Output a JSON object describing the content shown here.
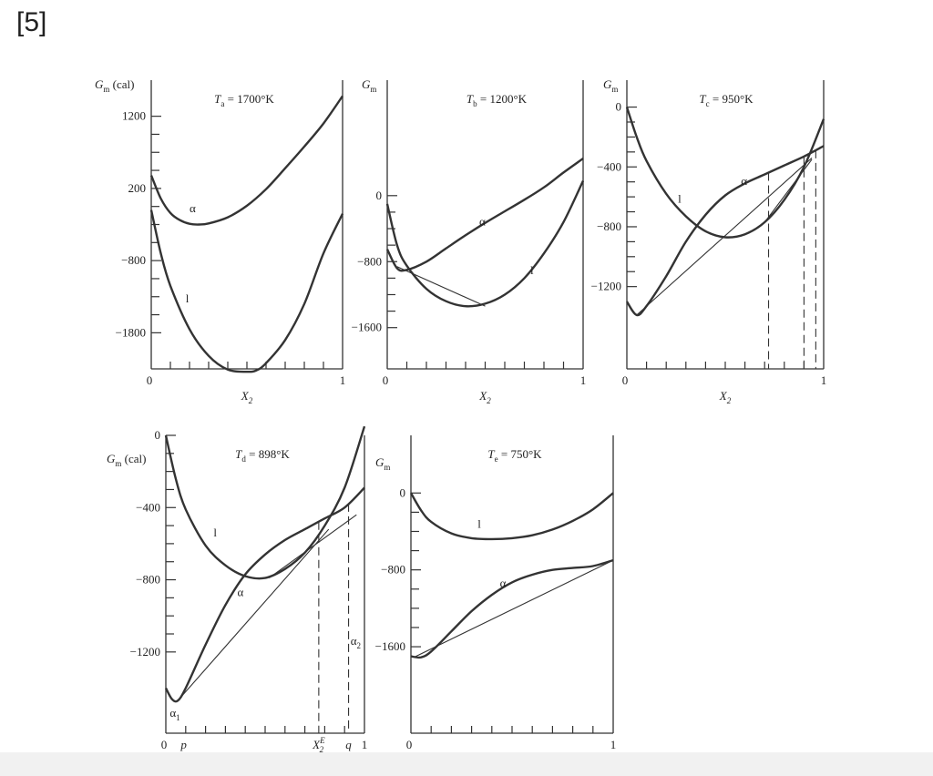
{
  "question_number": "[5]",
  "chart_data": [
    {
      "type": "line",
      "title": "Ta = 1700°K",
      "ylabel": "Gm (cal)",
      "xlabel": "X2",
      "xlim": [
        0,
        1
      ],
      "ylim": [
        -2300,
        1700
      ],
      "x_ticks": [
        "0",
        "1"
      ],
      "y_ticks": [
        {
          "value": 1200,
          "label": "1200"
        },
        {
          "value": 200,
          "label": "200"
        },
        {
          "value": -800,
          "label": "−800"
        },
        {
          "value": -1800,
          "label": "−1800"
        }
      ],
      "series": [
        {
          "name": "α",
          "x": [
            0,
            0.05,
            0.1,
            0.15,
            0.2,
            0.25,
            0.3,
            0.4,
            0.5,
            0.6,
            0.7,
            0.8,
            0.9,
            1.0
          ],
          "y": [
            380,
            60,
            -140,
            -240,
            -290,
            -300,
            -285,
            -200,
            -40,
            190,
            480,
            780,
            1100,
            1480
          ]
        },
        {
          "name": "l",
          "x": [
            0,
            0.05,
            0.1,
            0.2,
            0.3,
            0.4,
            0.5,
            0.55,
            0.6,
            0.7,
            0.8,
            0.9,
            1.0
          ],
          "y": [
            -100,
            -700,
            -1150,
            -1750,
            -2120,
            -2310,
            -2340,
            -2320,
            -2220,
            -1900,
            -1400,
            -700,
            -150
          ]
        }
      ],
      "annotations": [
        {
          "text": "α",
          "x": 0.2,
          "y": -130
        },
        {
          "text": "l",
          "x": 0.18,
          "y": -1380
        }
      ]
    },
    {
      "type": "line",
      "title": "Tb = 1200°K",
      "ylabel": "Gm",
      "xlabel": "X2",
      "xlim": [
        0,
        1
      ],
      "ylim": [
        -2100,
        1400
      ],
      "x_ticks": [
        "0",
        "1"
      ],
      "y_ticks": [
        {
          "value": 0,
          "label": "0"
        },
        {
          "value": -800,
          "label": "−800"
        },
        {
          "value": -1600,
          "label": "−1600"
        }
      ],
      "series": [
        {
          "name": "α",
          "x": [
            0,
            0.05,
            0.1,
            0.2,
            0.3,
            0.4,
            0.5,
            0.6,
            0.7,
            0.8,
            0.9,
            1.0
          ],
          "y": [
            -650,
            -880,
            -900,
            -800,
            -640,
            -480,
            -330,
            -190,
            -50,
            100,
            280,
            450
          ]
        },
        {
          "name": "l",
          "x": [
            0,
            0.05,
            0.1,
            0.2,
            0.3,
            0.4,
            0.5,
            0.6,
            0.7,
            0.8,
            0.9,
            1.0
          ],
          "y": [
            -100,
            -600,
            -850,
            -1130,
            -1280,
            -1340,
            -1310,
            -1200,
            -1000,
            -700,
            -320,
            180
          ]
        },
        {
          "name": "common tangent",
          "x": [
            0.05,
            0.5
          ],
          "y": [
            -860,
            -1340
          ]
        }
      ],
      "annotations": [
        {
          "text": "α",
          "x": 0.47,
          "y": -360
        },
        {
          "text": "l",
          "x": 0.73,
          "y": -950
        }
      ]
    },
    {
      "type": "line",
      "title": "Tc = 950°K",
      "ylabel": "Gm",
      "xlabel": "X2",
      "xlim": [
        0,
        1
      ],
      "ylim": [
        -1750,
        180
      ],
      "x_ticks": [
        "0",
        "1"
      ],
      "y_ticks": [
        {
          "value": 0,
          "label": "0"
        },
        {
          "value": -400,
          "label": "−400"
        },
        {
          "value": -800,
          "label": "−800"
        },
        {
          "value": -1200,
          "label": "−1200"
        }
      ],
      "series": [
        {
          "name": "l",
          "x": [
            0,
            0.05,
            0.1,
            0.2,
            0.3,
            0.4,
            0.5,
            0.6,
            0.7,
            0.8,
            0.9,
            1.0
          ],
          "y": [
            0,
            -200,
            -360,
            -580,
            -730,
            -830,
            -870,
            -850,
            -770,
            -620,
            -400,
            -80
          ]
        },
        {
          "name": "α",
          "x": [
            0,
            0.05,
            0.1,
            0.2,
            0.3,
            0.4,
            0.5,
            0.6,
            0.7,
            0.8,
            0.9,
            1.0
          ],
          "y": [
            -1300,
            -1390,
            -1330,
            -1130,
            -900,
            -720,
            -590,
            -510,
            -450,
            -390,
            -330,
            -260
          ]
        },
        {
          "name": "common tangent",
          "x": [
            0.05,
            0.94
          ],
          "y": [
            -1390,
            -340
          ]
        },
        {
          "name": "common tangent",
          "x": [
            0.7,
            0.94
          ],
          "y": [
            -770,
            -350
          ]
        }
      ],
      "dashed_x": [
        0.72,
        0.9,
        0.96
      ],
      "annotations": [
        {
          "text": "l",
          "x": 0.26,
          "y": -640
        },
        {
          "text": "α",
          "x": 0.58,
          "y": -520
        }
      ]
    },
    {
      "type": "line",
      "title": "Td = 898°K",
      "ylabel": "Gm (cal)",
      "xlabel": "X2",
      "xlim": [
        0,
        1
      ],
      "ylim": [
        -1650,
        0
      ],
      "x_ticks": [
        "0",
        "p",
        "X2E",
        "q",
        "1"
      ],
      "y_ticks": [
        {
          "value": 0,
          "label": "0"
        },
        {
          "value": -400,
          "label": "−400"
        },
        {
          "value": -800,
          "label": "−800"
        },
        {
          "value": -1200,
          "label": "−1200"
        }
      ],
      "series": [
        {
          "name": "l",
          "x": [
            0,
            0.05,
            0.1,
            0.2,
            0.3,
            0.4,
            0.5,
            0.6,
            0.7,
            0.8,
            0.9,
            1.0
          ],
          "y": [
            0,
            -240,
            -410,
            -610,
            -720,
            -780,
            -790,
            -740,
            -650,
            -500,
            -290,
            50
          ]
        },
        {
          "name": "α",
          "x": [
            0,
            0.03,
            0.06,
            0.1,
            0.2,
            0.3,
            0.4,
            0.5,
            0.6,
            0.7,
            0.8,
            0.9,
            1.0
          ],
          "y": [
            -1400,
            -1460,
            -1470,
            -1400,
            -1160,
            -940,
            -770,
            -660,
            -580,
            -520,
            -460,
            -400,
            -290
          ]
        },
        {
          "name": "common tangent",
          "x": [
            0.06,
            0.82
          ],
          "y": [
            -1470,
            -520
          ]
        },
        {
          "name": "common tangent",
          "x": [
            0.52,
            0.96
          ],
          "y": [
            -790,
            -440
          ]
        }
      ],
      "dashed_x": [
        0.77,
        0.92
      ],
      "annotations": [
        {
          "text": "l",
          "x": 0.24,
          "y": -560
        },
        {
          "text": "α",
          "x": 0.36,
          "y": -890
        },
        {
          "text": "α1",
          "x": 0.02,
          "y": -1560
        },
        {
          "text": "α2",
          "x": 0.93,
          "y": -1160
        }
      ]
    },
    {
      "type": "line",
      "title": "Te = 750°K",
      "ylabel": "Gm",
      "xlabel": "X2",
      "xlim": [
        0,
        1
      ],
      "ylim": [
        -2500,
        600
      ],
      "x_ticks": [
        "0",
        "1"
      ],
      "y_ticks": [
        {
          "value": 0,
          "label": "0"
        },
        {
          "value": -800,
          "label": "−800"
        },
        {
          "value": -1600,
          "label": "−1600"
        }
      ],
      "series": [
        {
          "name": "l",
          "x": [
            0,
            0.05,
            0.1,
            0.2,
            0.3,
            0.4,
            0.5,
            0.6,
            0.7,
            0.8,
            0.9,
            1.0
          ],
          "y": [
            0,
            -180,
            -300,
            -420,
            -470,
            -480,
            -470,
            -440,
            -380,
            -290,
            -170,
            0
          ]
        },
        {
          "name": "α",
          "x": [
            0,
            0.05,
            0.1,
            0.2,
            0.3,
            0.4,
            0.5,
            0.6,
            0.7,
            0.8,
            0.9,
            1.0
          ],
          "y": [
            -1700,
            -1710,
            -1650,
            -1440,
            -1230,
            -1060,
            -930,
            -850,
            -800,
            -780,
            -760,
            -700
          ]
        },
        {
          "name": "common tangent",
          "x": [
            0.02,
            1.0
          ],
          "y": [
            -1705,
            -700
          ]
        }
      ],
      "annotations": [
        {
          "text": "l",
          "x": 0.33,
          "y": -360
        },
        {
          "text": "α",
          "x": 0.44,
          "y": -980
        }
      ]
    }
  ]
}
